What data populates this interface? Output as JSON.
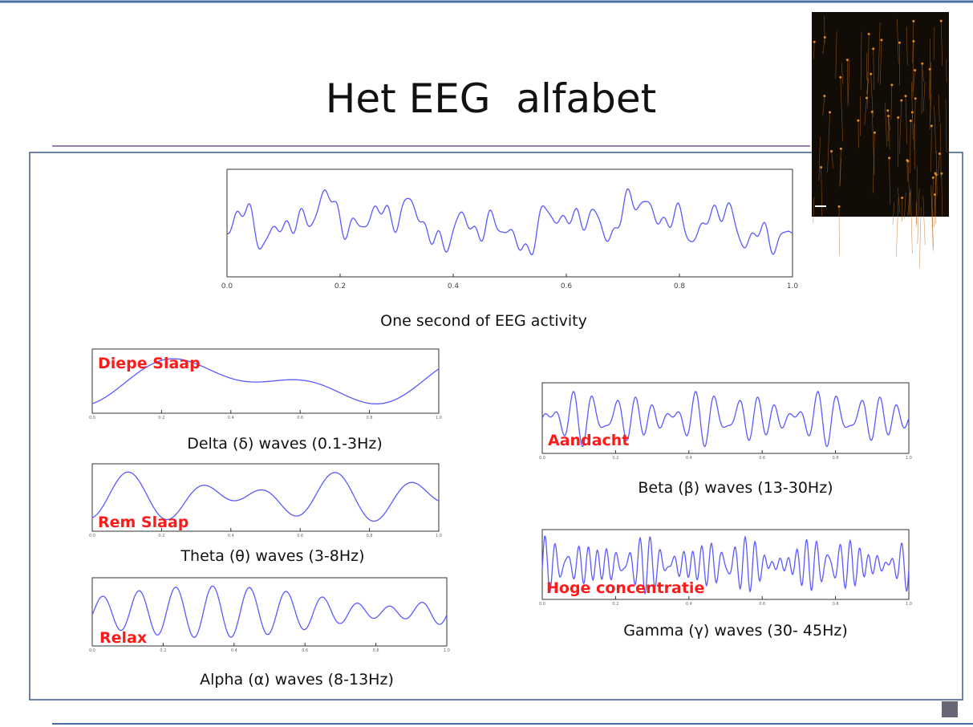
{
  "slide": {
    "title": "Het EEG  alfabet",
    "main_panel": {
      "ticks": [
        "0.0",
        "0.2",
        "0.4",
        "0.6",
        "0.8",
        "1.0"
      ],
      "caption": "One second of EEG activity"
    },
    "panels": [
      {
        "label": "Diepe Slaap",
        "caption": "Delta (δ) waves (0.1-3Hz)",
        "ticks": [
          "0.0",
          "0.2",
          "0.4",
          "0.6",
          "0.8",
          "1.0"
        ]
      },
      {
        "label": "Rem Slaap",
        "caption": "Theta (θ) waves (3-8Hz)",
        "ticks": [
          "0.0",
          "0.2",
          "0.4",
          "0.6",
          "0.8",
          "1.0"
        ]
      },
      {
        "label": "Relax",
        "caption": "Alpha (α) waves (8-13Hz)",
        "ticks": [
          "0.0",
          "0.2",
          "0.4",
          "0.6",
          "0.8",
          "1.0"
        ]
      },
      {
        "label": "Aandacht",
        "caption": "Beta (β) waves (13-30Hz)",
        "ticks": [
          "0.0",
          "0.2",
          "0.4",
          "0.6",
          "0.8",
          "1.0"
        ]
      },
      {
        "label": "Hoge concentratie",
        "caption": "Gamma (γ) waves (30- 45Hz)",
        "ticks": [
          "0.0",
          "0.2",
          "0.4",
          "0.6",
          "0.8",
          "1.0"
        ]
      }
    ]
  }
}
